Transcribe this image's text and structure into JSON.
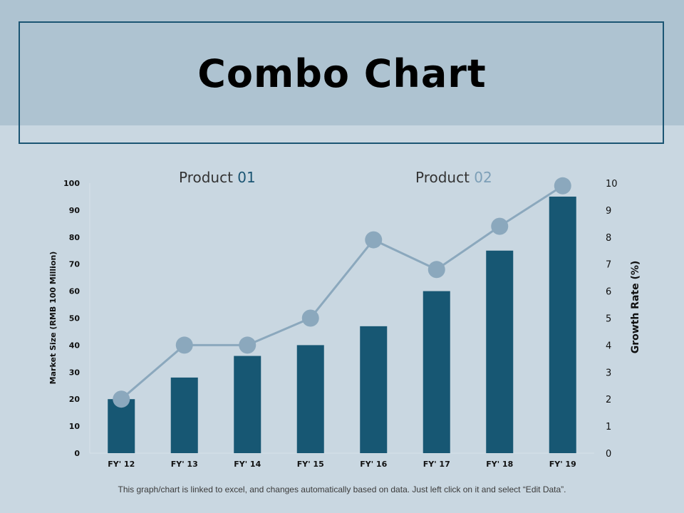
{
  "title": "Combo Chart",
  "footer": "This graph/chart is linked to excel, and changes automatically based on data. Just left click on it and select “Edit Data”.",
  "colors": {
    "bar": "#175773",
    "line": "#8ba8bd",
    "legend_product01_number": "#1b5573",
    "legend_product02_number": "#7d9fb7"
  },
  "legend": [
    {
      "prefix": "Product ",
      "number": "01"
    },
    {
      "prefix": "Product ",
      "number": "02"
    }
  ],
  "chart_data": {
    "type": "bar",
    "title": "Combo Chart",
    "categories": [
      "FY' 12",
      "FY' 13",
      "FY' 14",
      "FY' 15",
      "FY' 16",
      "FY' 17",
      "FY' 18",
      "FY' 19"
    ],
    "series": [
      {
        "name": "Product 01",
        "type": "bar",
        "axis": "left",
        "values": [
          20,
          28,
          36,
          40,
          47,
          60,
          75,
          95
        ]
      },
      {
        "name": "Product 02",
        "type": "line",
        "axis": "right",
        "values": [
          2,
          4,
          4,
          5,
          7.9,
          6.8,
          8.4,
          9.9
        ]
      }
    ],
    "ylabel": "Market Size (RMB 100 Million)",
    "ylim": [
      0,
      100
    ],
    "yticks": [
      "0",
      "10",
      "20",
      "30",
      "40",
      "50",
      "60",
      "70",
      "80",
      "90",
      "100"
    ],
    "y2label": "Growth Rate (%)",
    "y2lim": [
      0,
      10
    ],
    "y2ticks": [
      "0",
      "1",
      "2",
      "3",
      "4",
      "5",
      "6",
      "7",
      "8",
      "9",
      "10"
    ],
    "grid": false,
    "legend_position": "top"
  }
}
